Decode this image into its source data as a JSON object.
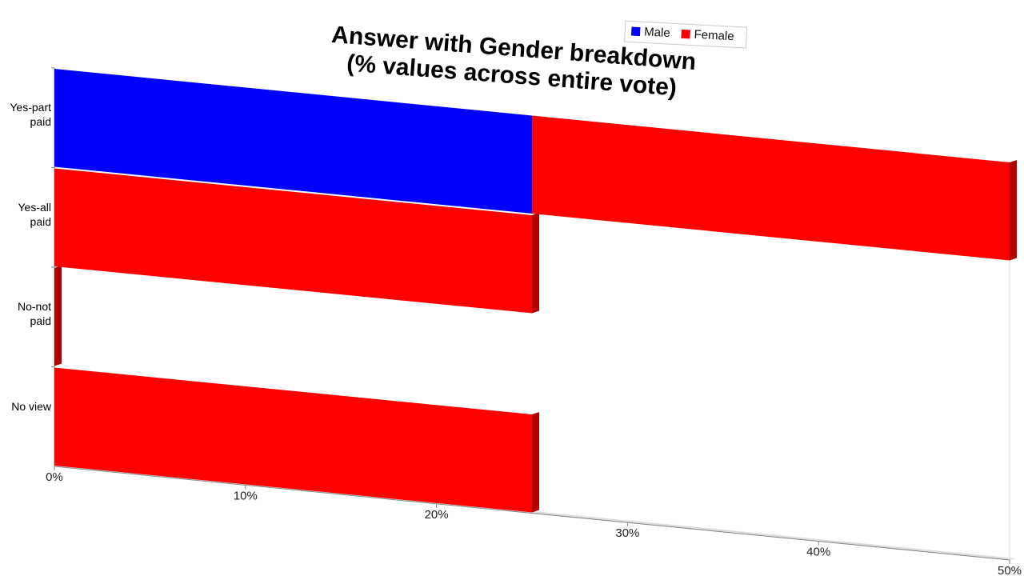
{
  "chart_data": {
    "type": "bar",
    "orientation": "horizontal",
    "stacked": true,
    "title": [
      "Answer with Gender breakdown",
      "(% values across entire vote)"
    ],
    "categories": [
      "Yes-part paid",
      "Yes-all paid",
      "No-not paid",
      "No view"
    ],
    "series": [
      {
        "name": "Male",
        "color": "#0000ff",
        "values": [
          25,
          0,
          0,
          0
        ]
      },
      {
        "name": "Female",
        "color": "#ff0000",
        "values": [
          25,
          25,
          0,
          25
        ]
      }
    ],
    "xlim": [
      0,
      50
    ],
    "xticks": [
      {
        "value": 0,
        "label": "0%"
      },
      {
        "value": 10,
        "label": "10%"
      },
      {
        "value": 20,
        "label": "20%"
      },
      {
        "value": 30,
        "label": "30%"
      },
      {
        "value": 40,
        "label": "40%"
      },
      {
        "value": 50,
        "label": "50%"
      }
    ],
    "grid": false,
    "legend": "top"
  }
}
